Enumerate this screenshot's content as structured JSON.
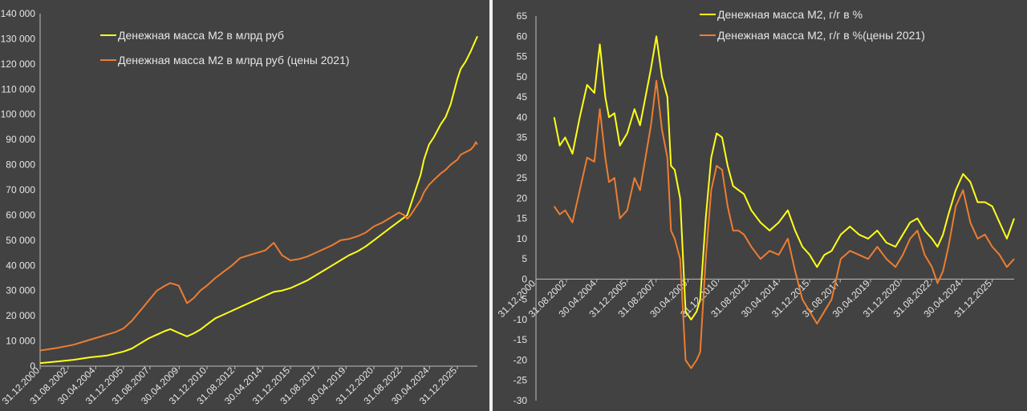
{
  "chart_data": [
    {
      "type": "line",
      "title": "",
      "xlabel": "",
      "ylabel": "",
      "ylim": [
        0,
        140000
      ],
      "yticks": [
        0,
        10000,
        20000,
        30000,
        40000,
        50000,
        60000,
        70000,
        80000,
        90000,
        100000,
        110000,
        120000,
        130000,
        140000
      ],
      "ytick_labels": [
        "0",
        "10 000",
        "20 000",
        "30 000",
        "40 000",
        "50 000",
        "60 000",
        "70 000",
        "80 000",
        "90 000",
        "100 000",
        "110 000",
        "120 000",
        "130 000",
        "140 000"
      ],
      "xlim": [
        2000.0,
        2026.2
      ],
      "xticks": [
        2000.0,
        2001.67,
        2003.33,
        2005.0,
        2006.58,
        2008.33,
        2010.0,
        2011.67,
        2013.33,
        2015.0,
        2016.67,
        2018.33,
        2020.0,
        2021.67,
        2023.33,
        2025.0
      ],
      "xtick_labels": [
        "31.12.2000",
        "31.08.2002",
        "30.04.2004",
        "31.12.2005",
        "31.08.2007",
        "30.04.2009",
        "31.12.2010",
        "31.08.2012",
        "30.04.2014",
        "31.12.2015",
        "31.08.2017",
        "30.04.2019",
        "31.12.2020",
        "31.08.2022",
        "30.04.2024",
        "31.12.2025"
      ],
      "legend_position": "top-left",
      "grid": false,
      "series": [
        {
          "name": "Денежная масса М2 в млрд руб",
          "color": "#ffff1a",
          "x": [
            2000.0,
            2001.0,
            2002.0,
            2003.0,
            2004.0,
            2004.5,
            2005.0,
            2005.5,
            2006.0,
            2006.5,
            2007.0,
            2007.5,
            2007.8,
            2008.3,
            2008.8,
            2009.2,
            2009.6,
            2010.0,
            2010.5,
            2011.0,
            2011.5,
            2012.0,
            2012.5,
            2013.0,
            2013.5,
            2014.0,
            2014.5,
            2015.0,
            2015.5,
            2016.0,
            2016.5,
            2017.0,
            2017.5,
            2018.0,
            2018.5,
            2019.0,
            2019.5,
            2020.0,
            2020.5,
            2021.0,
            2021.5,
            2021.8,
            2022.0,
            2022.2,
            2022.5,
            2022.8,
            2023.0,
            2023.3,
            2023.6,
            2024.0,
            2024.3,
            2024.6,
            2025.0,
            2025.2,
            2025.5,
            2025.8,
            2026.0,
            2026.1,
            2026.2
          ],
          "values": [
            1200,
            1800,
            2500,
            3500,
            4200,
            5000,
            5800,
            7000,
            9000,
            11000,
            12500,
            14000,
            14700,
            13200,
            11800,
            13000,
            14500,
            16500,
            19000,
            20500,
            22000,
            23500,
            25000,
            26500,
            28000,
            29500,
            30000,
            31000,
            32500,
            34000,
            36000,
            38000,
            40000,
            42000,
            44000,
            45500,
            47500,
            50000,
            52500,
            55000,
            57500,
            59000,
            60000,
            64000,
            70000,
            76000,
            82000,
            88000,
            91000,
            96000,
            99000,
            104000,
            114000,
            118000,
            121000,
            125000,
            128000,
            129500,
            131000
          ]
        },
        {
          "name": "Денежная масса М2 в млрд руб (цены 2021)",
          "color": "#ed7d31",
          "x": [
            2000.0,
            2001.0,
            2002.0,
            2003.0,
            2004.0,
            2004.5,
            2005.0,
            2005.5,
            2006.0,
            2006.5,
            2007.0,
            2007.5,
            2007.8,
            2008.3,
            2008.8,
            2009.2,
            2009.6,
            2010.0,
            2010.5,
            2011.0,
            2011.5,
            2012.0,
            2012.5,
            2013.0,
            2013.5,
            2014.0,
            2014.5,
            2015.0,
            2015.5,
            2016.0,
            2016.5,
            2017.0,
            2017.5,
            2018.0,
            2018.5,
            2019.0,
            2019.5,
            2020.0,
            2020.5,
            2021.0,
            2021.5,
            2021.8,
            2022.0,
            2022.2,
            2022.5,
            2022.8,
            2023.0,
            2023.3,
            2023.6,
            2024.0,
            2024.3,
            2024.6,
            2025.0,
            2025.2,
            2025.5,
            2025.8,
            2026.0,
            2026.1,
            2026.2
          ],
          "values": [
            6200,
            7200,
            8500,
            10500,
            12500,
            13500,
            15000,
            18000,
            22000,
            26000,
            30000,
            32000,
            33000,
            32000,
            25000,
            27000,
            30000,
            32000,
            35000,
            37500,
            40000,
            43000,
            44000,
            45000,
            46000,
            49000,
            44000,
            42000,
            42500,
            43500,
            45000,
            46500,
            48000,
            50000,
            50500,
            51500,
            53000,
            55500,
            57000,
            59000,
            61000,
            60000,
            58500,
            60000,
            63000,
            66000,
            69000,
            72000,
            74000,
            76500,
            78000,
            80000,
            82000,
            84000,
            85000,
            86000,
            87500,
            89000,
            88000
          ]
        }
      ]
    },
    {
      "type": "line",
      "title": "",
      "xlabel": "",
      "ylabel": "",
      "ylim": [
        -30,
        65
      ],
      "yticks": [
        -30,
        -25,
        -20,
        -15,
        -10,
        -5,
        0,
        5,
        10,
        15,
        20,
        25,
        30,
        35,
        40,
        45,
        50,
        55,
        60,
        65
      ],
      "ytick_labels": [
        "-30",
        "-25",
        "-20",
        "-15",
        "-10",
        "-5",
        "0",
        "5",
        "10",
        "15",
        "20",
        "25",
        "30",
        "35",
        "40",
        "45",
        "50",
        "55",
        "60",
        "65"
      ],
      "xlim": [
        2000.0,
        2026.2
      ],
      "xticks": [
        2000.0,
        2001.67,
        2003.33,
        2005.0,
        2006.58,
        2008.33,
        2010.0,
        2011.67,
        2013.33,
        2015.0,
        2016.67,
        2018.33,
        2020.0,
        2021.67,
        2023.33,
        2025.0
      ],
      "xtick_labels": [
        "31.12.2000",
        "31.08.2002",
        "30.04.2004",
        "31.12.2005",
        "31.08.2007",
        "30.04.2009",
        "31.12.2010",
        "31.08.2012",
        "30.04.2014",
        "31.12.2015",
        "31.08.2017",
        "30.04.2019",
        "31.12.2020",
        "31.08.2022",
        "30.04.2024",
        "31.12.2025"
      ],
      "legend_position": "top-center",
      "grid": false,
      "series": [
        {
          "name": "Денежная масса М2, г/г в %",
          "color": "#ffff1a",
          "x": [
            2001.0,
            2001.3,
            2001.6,
            2002.0,
            2002.4,
            2002.8,
            2003.2,
            2003.5,
            2003.8,
            2004.0,
            2004.3,
            2004.6,
            2005.0,
            2005.4,
            2005.7,
            2006.0,
            2006.3,
            2006.6,
            2006.9,
            2007.2,
            2007.4,
            2007.6,
            2007.9,
            2008.2,
            2008.5,
            2008.8,
            2009.0,
            2009.3,
            2009.6,
            2009.9,
            2010.2,
            2010.5,
            2010.8,
            2011.1,
            2011.4,
            2011.8,
            2012.3,
            2012.8,
            2013.3,
            2013.8,
            2014.2,
            2014.6,
            2015.0,
            2015.4,
            2015.8,
            2016.2,
            2016.7,
            2017.2,
            2017.7,
            2018.2,
            2018.7,
            2019.2,
            2019.7,
            2020.1,
            2020.5,
            2020.9,
            2021.3,
            2021.7,
            2022.0,
            2022.3,
            2022.6,
            2023.0,
            2023.4,
            2023.8,
            2024.2,
            2024.6,
            2025.0,
            2025.4,
            2025.8,
            2026.2
          ],
          "values": [
            40,
            33,
            35,
            31,
            40,
            48,
            46,
            58,
            45,
            40,
            41,
            33,
            36,
            42,
            38,
            45,
            52,
            60,
            50,
            45,
            28,
            27,
            20,
            -8,
            -10,
            -8,
            -5,
            15,
            30,
            36,
            35,
            28,
            23,
            22,
            21,
            17,
            14,
            12,
            14,
            17,
            12,
            8,
            6,
            3,
            6,
            7,
            11,
            13,
            11,
            10,
            12,
            9,
            8,
            11,
            14,
            15,
            12,
            10,
            8,
            11,
            16,
            22,
            26,
            24,
            19,
            19,
            18,
            14,
            10,
            15
          ]
        },
        {
          "name": "Денежная масса М2, г/г в %(цены 2021)",
          "color": "#ed7d31",
          "x": [
            2001.0,
            2001.3,
            2001.6,
            2002.0,
            2002.4,
            2002.8,
            2003.2,
            2003.5,
            2003.8,
            2004.0,
            2004.3,
            2004.6,
            2005.0,
            2005.4,
            2005.7,
            2006.0,
            2006.3,
            2006.6,
            2006.9,
            2007.2,
            2007.4,
            2007.6,
            2007.9,
            2008.2,
            2008.5,
            2008.8,
            2009.0,
            2009.3,
            2009.6,
            2009.9,
            2010.2,
            2010.5,
            2010.8,
            2011.1,
            2011.4,
            2011.8,
            2012.3,
            2012.8,
            2013.3,
            2013.8,
            2014.2,
            2014.6,
            2015.0,
            2015.4,
            2015.8,
            2016.2,
            2016.7,
            2017.2,
            2017.7,
            2018.2,
            2018.7,
            2019.2,
            2019.7,
            2020.1,
            2020.5,
            2020.9,
            2021.3,
            2021.7,
            2022.0,
            2022.3,
            2022.6,
            2023.0,
            2023.4,
            2023.8,
            2024.2,
            2024.6,
            2025.0,
            2025.4,
            2025.8,
            2026.2
          ],
          "values": [
            18,
            16,
            17,
            14,
            22,
            30,
            29,
            42,
            30,
            24,
            25,
            15,
            17,
            25,
            22,
            30,
            38,
            49,
            37,
            30,
            12,
            10,
            5,
            -20,
            -22,
            -20,
            -18,
            5,
            22,
            28,
            27,
            18,
            12,
            12,
            11,
            8,
            5,
            7,
            6,
            10,
            2,
            -5,
            -8,
            -11,
            -8,
            -5,
            5,
            7,
            6,
            5,
            8,
            5,
            3,
            6,
            10,
            12,
            6,
            3,
            -1,
            2,
            8,
            18,
            22,
            14,
            10,
            11,
            8,
            6,
            3,
            5
          ]
        }
      ]
    }
  ]
}
